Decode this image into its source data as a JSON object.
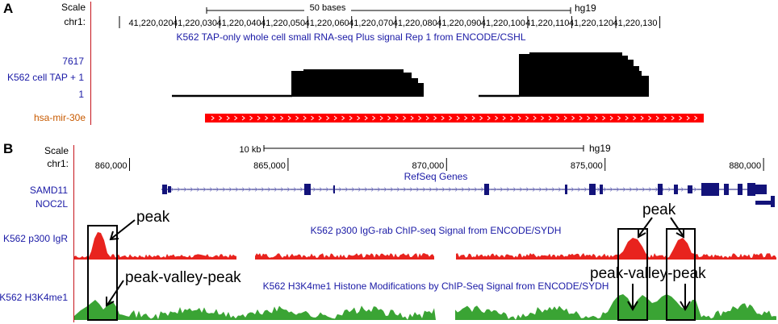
{
  "panel_a": {
    "letter": "A",
    "scale_label": "Scale",
    "chrom_label": "chr1:",
    "scale_bar_text": "50 bases",
    "assembly": "hg19",
    "ticks": [
      "41,220,020",
      "41,220,030",
      "41,220,040",
      "41,220,050",
      "41,220,060",
      "41,220,070",
      "41,220,080",
      "41,220,090",
      "41,220,100",
      "41,220,110",
      "41,220,120",
      "41,220,130"
    ],
    "track_title": "K562 TAP-only whole cell small RNA-seq Plus signal Rep 1 from ENCODE/CSHL",
    "track_max": "7617",
    "track_name": "K562 cell TAP + 1",
    "track_min": "1",
    "mirna_label": "hsa-mir-30e",
    "colors": {
      "signal": "#000000",
      "mirna": "#ff0000",
      "label_blue": "#1a1aa6",
      "label_orange": "#c85a00"
    }
  },
  "panel_b": {
    "letter": "B",
    "scale_label": "Scale",
    "chrom_label": "chr1:",
    "scale_bar_text": "10 kb",
    "assembly": "hg19",
    "ticks": [
      "860,000",
      "865,000",
      "870,000",
      "875,000",
      "880,000"
    ],
    "genes_title": "RefSeq Genes",
    "gene1": "SAMD11",
    "gene2": "NOC2L",
    "p300_label": "K562 p300 IgR",
    "p300_title": "K562 p300 IgG-rab ChIP-seq Signal from ENCODE/SYDH",
    "h3k4_label": "K562 H3K4me1",
    "h3k4_title": "K562 H3K4me1 Histone Modifications by ChIP-Seq Signal from ENCODE/SYDH",
    "annot_peak_left": "peak",
    "annot_pvp_left": "peak-valley-peak",
    "annot_peak_right": "peak",
    "annot_pvp_right": "peak-valley-peak",
    "colors": {
      "p300": "#e8231e",
      "h3k4": "#3aa434",
      "gene": "#13137a"
    }
  }
}
